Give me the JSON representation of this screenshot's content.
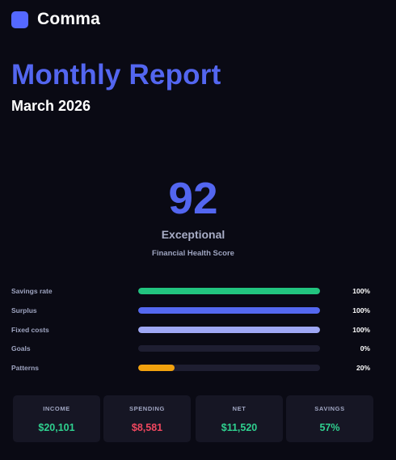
{
  "brand": {
    "name": "Comma",
    "logo_color": "#5468ff"
  },
  "report": {
    "title": "Monthly Report",
    "period": "March 2026"
  },
  "health": {
    "score": "92",
    "rating": "Exceptional",
    "caption": "Financial Health Score",
    "accent": "#5366f0"
  },
  "metrics": [
    {
      "label": "Savings rate",
      "value": "100%",
      "progress": 1.0,
      "color": "#22c47f"
    },
    {
      "label": "Surplus",
      "value": "100%",
      "progress": 1.0,
      "color": "#5468f0"
    },
    {
      "label": "Fixed costs",
      "value": "100%",
      "progress": 1.0,
      "color": "#9fa8f5"
    },
    {
      "label": "Goals",
      "value": "0%",
      "progress": 0.0,
      "color": "#5468f0"
    },
    {
      "label": "Patterns",
      "value": "20%",
      "progress": 0.2,
      "color": "#f1a10e"
    }
  ],
  "summary": [
    {
      "title": "INCOME",
      "value": "$20,101",
      "color": "#2fd08f"
    },
    {
      "title": "SPENDING",
      "value": "$8,581",
      "color": "#f0475f"
    },
    {
      "title": "NET",
      "value": "$11,520",
      "color": "#2fd08f"
    },
    {
      "title": "SAVINGS",
      "value": "57%",
      "color": "#2fd08f"
    }
  ]
}
